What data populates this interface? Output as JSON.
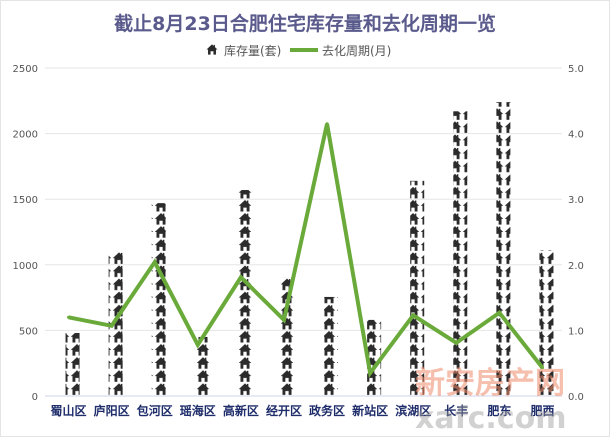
{
  "chart_data": {
    "type": "bar",
    "title": "截止8月23日合肥住宅库存量和去化周期一览",
    "categories": [
      "蜀山区",
      "庐阳区",
      "包河区",
      "瑶海区",
      "高新区",
      "经开区",
      "政务区",
      "新站区",
      "滨湖区",
      "长丰",
      "肥东",
      "肥西"
    ],
    "series": [
      {
        "name": "库存量(套)",
        "type": "pictogram-bar",
        "axis": "left",
        "color": "#2b2b2b",
        "icon": "house-icon",
        "values": [
          480,
          1100,
          1470,
          450,
          1570,
          905,
          755,
          580,
          1640,
          2170,
          2240,
          1110
        ]
      },
      {
        "name": "去化周期(月)",
        "type": "line",
        "axis": "right",
        "color": "#6aaa3a",
        "values": [
          1.2,
          1.07,
          2.04,
          0.78,
          1.81,
          1.16,
          4.15,
          0.35,
          1.23,
          0.81,
          1.27,
          0.43
        ]
      }
    ],
    "y_left": {
      "range": [
        0,
        2500
      ],
      "ticks": [
        "0",
        "500",
        "1000",
        "1500",
        "2000",
        "2500"
      ]
    },
    "y_right": {
      "range": [
        0,
        5
      ],
      "ticks": [
        "0.0",
        "1.0",
        "2.0",
        "3.0",
        "4.0",
        "5.0"
      ]
    },
    "grid": true,
    "legend_placement": "top"
  },
  "watermark": {
    "text": "新安房产网",
    "domain": "xafc.com"
  }
}
